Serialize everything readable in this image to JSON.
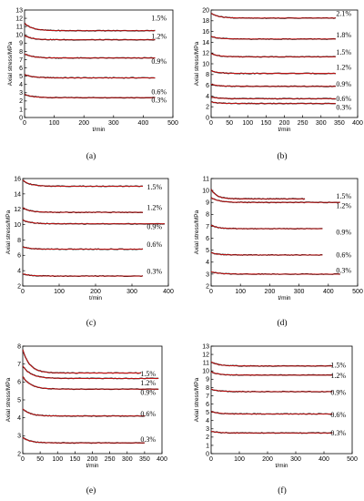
{
  "colors": {
    "data": "#1a1a1a",
    "fit": "#d01010",
    "axis": "#000000"
  },
  "chart_data": [
    {
      "type": "line",
      "panel_label": "(a)",
      "xlabel": "t/min",
      "ylabel": "Axial stress/MPa",
      "xlim": [
        0,
        500
      ],
      "ylim": [
        0,
        13
      ],
      "xticks": [
        0,
        100,
        200,
        300,
        400,
        500
      ],
      "yticks": [
        0,
        1,
        2,
        3,
        4,
        5,
        6,
        7,
        8,
        9,
        10,
        11,
        12,
        13
      ],
      "series": [
        {
          "name": "0.3%",
          "start": 2.8,
          "end": 2.4,
          "tmax": 440,
          "label_y": 2.1
        },
        {
          "name": "0.6%",
          "start": 5.2,
          "end": 4.8,
          "tmax": 440,
          "label_y": 3.1
        },
        {
          "name": "0.9%",
          "start": 7.7,
          "end": 7.2,
          "tmax": 440,
          "label_y": 6.8
        },
        {
          "name": "1.2%",
          "start": 9.9,
          "end": 9.4,
          "tmax": 440,
          "label_y": 9.8
        },
        {
          "name": "1.5%",
          "start": 11.4,
          "end": 10.5,
          "tmax": 440,
          "label_y": 12.0
        }
      ]
    },
    {
      "type": "line",
      "panel_label": "(b)",
      "xlabel": "t/min",
      "ylabel": "Axial stress/MPa",
      "xlim": [
        0,
        400
      ],
      "ylim": [
        0,
        20
      ],
      "xticks": [
        0,
        50,
        100,
        150,
        200,
        250,
        300,
        350,
        400
      ],
      "yticks": [
        0,
        2,
        4,
        6,
        8,
        10,
        12,
        14,
        16,
        18,
        20
      ],
      "series": [
        {
          "name": "0.3%",
          "start": 2.9,
          "end": 2.6,
          "tmax": 340,
          "label_y": 1.9
        },
        {
          "name": "0.6%",
          "start": 3.8,
          "end": 3.5,
          "tmax": 340,
          "label_y": 3.5
        },
        {
          "name": "0.9%",
          "start": 6.2,
          "end": 5.8,
          "tmax": 340,
          "label_y": 6.2
        },
        {
          "name": "1.2%",
          "start": 8.7,
          "end": 8.2,
          "tmax": 340,
          "label_y": 9.3
        },
        {
          "name": "1.5%",
          "start": 11.9,
          "end": 11.3,
          "tmax": 340,
          "label_y": 12.1
        },
        {
          "name": "1.8%",
          "start": 15.1,
          "end": 14.6,
          "tmax": 340,
          "label_y": 15.3
        },
        {
          "name": "2.1%",
          "start": 19.4,
          "end": 18.5,
          "tmax": 340,
          "label_y": 19.3
        }
      ]
    },
    {
      "type": "line",
      "panel_label": "(c)",
      "xlabel": "t/min",
      "ylabel": "Axial stress/MPa",
      "xlim": [
        0,
        400
      ],
      "ylim": [
        2,
        16
      ],
      "xticks": [
        0,
        100,
        200,
        300,
        400
      ],
      "yticks": [
        2,
        4,
        6,
        8,
        10,
        12,
        14,
        16
      ],
      "series": [
        {
          "name": "0.3%",
          "start": 3.6,
          "end": 3.3,
          "tmax": 330,
          "label_y": 3.9
        },
        {
          "name": "0.6%",
          "start": 7.1,
          "end": 6.8,
          "tmax": 330,
          "label_y": 7.4
        },
        {
          "name": "0.9%",
          "start": 10.6,
          "end": 10.1,
          "tmax": 390,
          "label_y": 9.7
        },
        {
          "name": "1.2%",
          "start": 12.2,
          "end": 11.6,
          "tmax": 330,
          "label_y": 12.2
        },
        {
          "name": "1.5%",
          "start": 15.8,
          "end": 15.0,
          "tmax": 330,
          "label_y": 14.9
        }
      ]
    },
    {
      "type": "line",
      "panel_label": "(d)",
      "xlabel": "t/min",
      "ylabel": "Axial stress/MPa",
      "xlim": [
        0,
        500
      ],
      "ylim": [
        2,
        11
      ],
      "xticks": [
        0,
        100,
        200,
        300,
        400,
        500
      ],
      "yticks": [
        2,
        3,
        4,
        5,
        6,
        7,
        8,
        9,
        10,
        11
      ],
      "series": [
        {
          "name": "0.3%",
          "start": 3.2,
          "end": 3.0,
          "tmax": 440,
          "label_y": 3.3
        },
        {
          "name": "0.6%",
          "start": 4.8,
          "end": 4.6,
          "tmax": 380,
          "label_y": 4.6
        },
        {
          "name": "0.9%",
          "start": 7.1,
          "end": 6.8,
          "tmax": 380,
          "label_y": 6.5
        },
        {
          "name": "1.2%",
          "start": 9.4,
          "end": 9.0,
          "tmax": 440,
          "label_y": 8.7
        },
        {
          "name": "1.5%",
          "start": 10.1,
          "end": 9.3,
          "tmax": 320,
          "label_y": 9.5
        }
      ]
    },
    {
      "type": "line",
      "panel_label": "(e)",
      "xlabel": "t/min",
      "ylabel": "Axial stress/MPa",
      "xlim": [
        0,
        400
      ],
      "ylim": [
        2,
        8
      ],
      "xticks": [
        0,
        50,
        100,
        150,
        200,
        250,
        300,
        350,
        400
      ],
      "yticks": [
        2,
        3,
        4,
        5,
        6,
        7,
        8
      ],
      "series": [
        {
          "name": "0.3%",
          "start": 2.9,
          "end": 2.6,
          "tmax": 350,
          "label_y": 2.8
        },
        {
          "name": "0.6%",
          "start": 4.5,
          "end": 4.1,
          "tmax": 350,
          "label_y": 4.2
        },
        {
          "name": "0.9%",
          "start": 6.3,
          "end": 5.6,
          "tmax": 390,
          "label_y": 5.4
        },
        {
          "name": "1.2%",
          "start": 6.9,
          "end": 6.2,
          "tmax": 390,
          "label_y": 5.95
        },
        {
          "name": "1.5%",
          "start": 7.8,
          "end": 6.5,
          "tmax": 340,
          "label_y": 6.45
        }
      ]
    },
    {
      "type": "line",
      "panel_label": "(f)",
      "xlabel": "t/min",
      "ylabel": "Axial stress/MPa",
      "xlim": [
        0,
        500
      ],
      "ylim": [
        0,
        13
      ],
      "xticks": [
        0,
        100,
        200,
        300,
        400,
        500
      ],
      "yticks": [
        0,
        1,
        2,
        3,
        4,
        5,
        6,
        7,
        8,
        9,
        10,
        11,
        12,
        13
      ],
      "series": [
        {
          "name": "0.3%",
          "start": 2.7,
          "end": 2.5,
          "tmax": 430,
          "label_y": 2.5
        },
        {
          "name": "0.6%",
          "start": 5.1,
          "end": 4.8,
          "tmax": 430,
          "label_y": 4.7
        },
        {
          "name": "0.9%",
          "start": 7.8,
          "end": 7.5,
          "tmax": 430,
          "label_y": 7.4
        },
        {
          "name": "1.2%",
          "start": 9.9,
          "end": 9.5,
          "tmax": 430,
          "label_y": 9.4
        },
        {
          "name": "1.5%",
          "start": 11.1,
          "end": 10.6,
          "tmax": 430,
          "label_y": 10.7
        }
      ]
    }
  ]
}
